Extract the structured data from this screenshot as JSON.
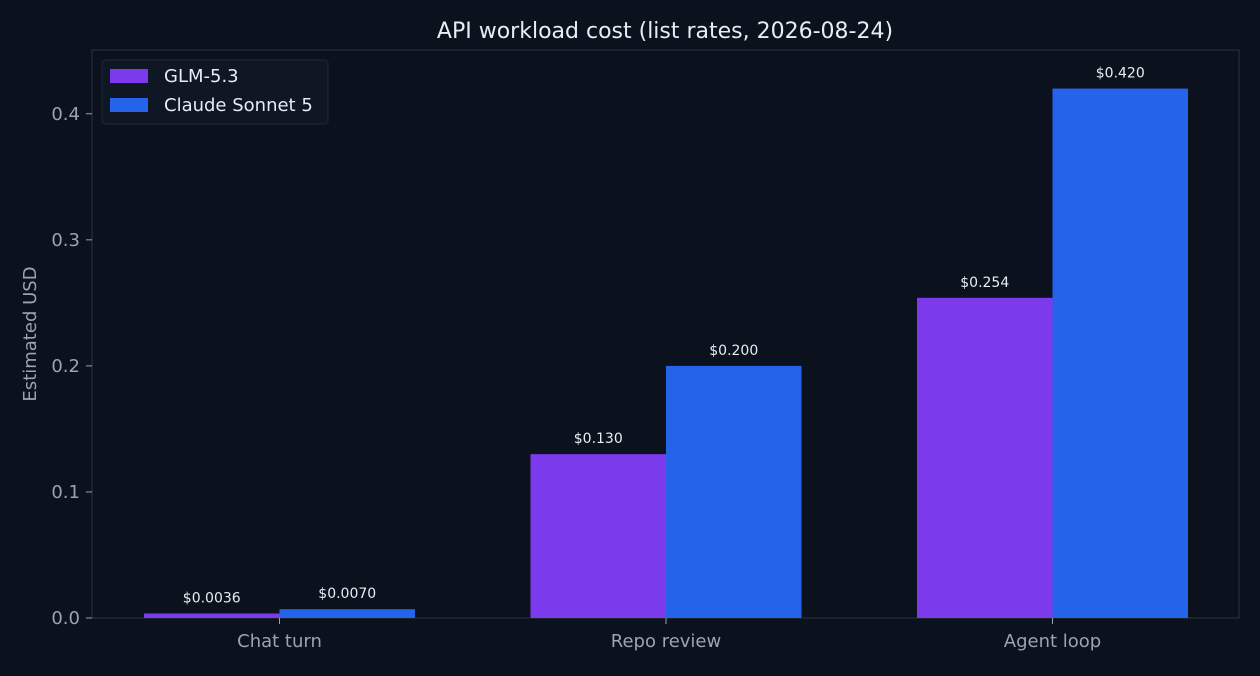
{
  "chart_data": {
    "type": "bar",
    "title": "API workload cost (list rates, 2026-08-24)",
    "xlabel": "",
    "ylabel": "Estimated USD",
    "categories": [
      "Chat turn",
      "Repo review",
      "Agent loop"
    ],
    "series": [
      {
        "name": "GLM-5.3",
        "color": "#7c3aed",
        "values": [
          0.0036,
          0.13,
          0.254
        ],
        "labels": [
          "$0.0036",
          "$0.130",
          "$0.254"
        ]
      },
      {
        "name": "Claude Sonnet 5",
        "color": "#2563eb",
        "values": [
          0.007,
          0.2,
          0.42
        ],
        "labels": [
          "$0.0070",
          "$0.200",
          "$0.420"
        ]
      }
    ],
    "ylim": [
      0,
      0.4506
    ],
    "yticks": [
      0.0,
      0.1,
      0.2,
      0.3,
      0.4
    ],
    "ytick_labels": [
      "0.0",
      "0.1",
      "0.2",
      "0.3",
      "0.4"
    ],
    "grid": false,
    "legend_position": "top-left",
    "colors": {
      "background": "#0b111d",
      "axes_edge": "#1e2a38",
      "tick_text": "#9aa4b2",
      "title_text": "#e6edf3",
      "label_text": "#e6edf3",
      "legend_bg": "#0f1724"
    }
  }
}
